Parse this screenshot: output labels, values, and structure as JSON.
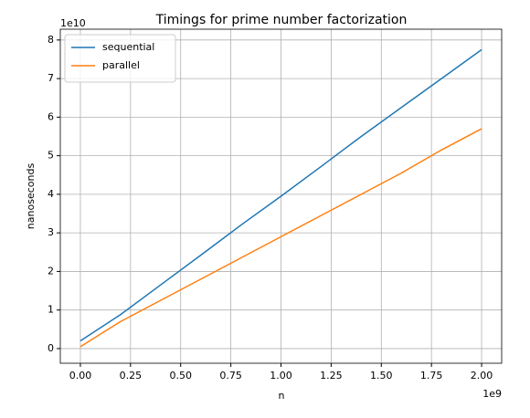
{
  "chart_data": {
    "type": "line",
    "title": "Timings for prime number factorization",
    "xlabel": "n",
    "ylabel": "nanoseconds",
    "x_offset_label": "1e9",
    "y_offset_label": "1e10",
    "x": [
      0,
      0.2,
      0.4,
      0.6,
      0.8,
      1.0,
      1.2,
      1.4,
      1.6,
      1.8,
      2.0
    ],
    "series": [
      {
        "name": "sequential",
        "color": "#1f77b4",
        "values": [
          0.2,
          0.88,
          1.65,
          2.42,
          3.2,
          3.95,
          4.72,
          5.5,
          6.25,
          7.0,
          7.75
        ]
      },
      {
        "name": "parallel",
        "color": "#ff7f0e",
        "values": [
          0.05,
          0.7,
          1.25,
          1.8,
          2.35,
          2.9,
          3.45,
          4.0,
          4.55,
          5.15,
          5.7
        ]
      }
    ],
    "xlim": [
      -0.1,
      2.1
    ],
    "xticks": [
      {
        "value": 0,
        "label": "0.00"
      },
      {
        "value": 0.25,
        "label": "0.25"
      },
      {
        "value": 0.5,
        "label": "0.50"
      },
      {
        "value": 0.75,
        "label": "0.75"
      },
      {
        "value": 1,
        "label": "1.00"
      },
      {
        "value": 1.25,
        "label": "1.25"
      },
      {
        "value": 1.5,
        "label": "1.50"
      },
      {
        "value": 1.75,
        "label": "1.75"
      },
      {
        "value": 2,
        "label": "2.00"
      }
    ],
    "ylim": [
      -0.38,
      8.28
    ],
    "yticks": [
      0,
      1,
      2,
      3,
      4,
      5,
      6,
      7,
      8
    ],
    "grid": true,
    "legend": "upper left"
  }
}
